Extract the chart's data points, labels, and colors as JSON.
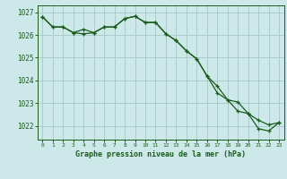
{
  "title": "Graphe pression niveau de la mer (hPa)",
  "background_color": "#cde8e8",
  "grid_color": "#aacccc",
  "line_color": "#1a5c1a",
  "xlim": [
    -0.5,
    23.5
  ],
  "ylim": [
    1021.4,
    1027.3
  ],
  "yticks": [
    1022,
    1023,
    1024,
    1025,
    1026,
    1027
  ],
  "xticks": [
    0,
    1,
    2,
    3,
    4,
    5,
    6,
    7,
    8,
    9,
    10,
    11,
    12,
    13,
    14,
    15,
    16,
    17,
    18,
    19,
    20,
    21,
    22,
    23
  ],
  "series1_x": [
    0,
    1,
    2,
    3,
    4,
    5,
    6,
    7,
    8,
    9,
    10,
    11,
    12,
    13,
    14,
    15,
    16,
    17,
    18,
    19,
    20,
    21,
    22,
    23
  ],
  "series1_y": [
    1026.8,
    1026.35,
    1026.35,
    1026.1,
    1026.25,
    1026.1,
    1026.35,
    1026.35,
    1026.72,
    1026.82,
    1026.55,
    1026.55,
    1026.05,
    1025.75,
    1025.3,
    1024.95,
    1024.2,
    1023.75,
    1023.15,
    1023.05,
    1022.55,
    1022.25,
    1022.05,
    1022.15
  ],
  "series2_x": [
    0,
    1,
    2,
    3,
    4,
    5,
    6,
    7,
    8,
    9,
    10,
    11,
    12,
    13,
    14,
    15,
    16,
    17,
    18,
    19,
    20,
    21,
    22,
    23
  ],
  "series2_y": [
    1026.8,
    1026.35,
    1026.35,
    1026.1,
    1026.05,
    1026.1,
    1026.35,
    1026.35,
    1026.72,
    1026.82,
    1026.55,
    1026.55,
    1026.05,
    1025.75,
    1025.3,
    1024.95,
    1024.2,
    1023.45,
    1023.15,
    1022.65,
    1022.55,
    1021.88,
    1021.78,
    1022.15
  ]
}
